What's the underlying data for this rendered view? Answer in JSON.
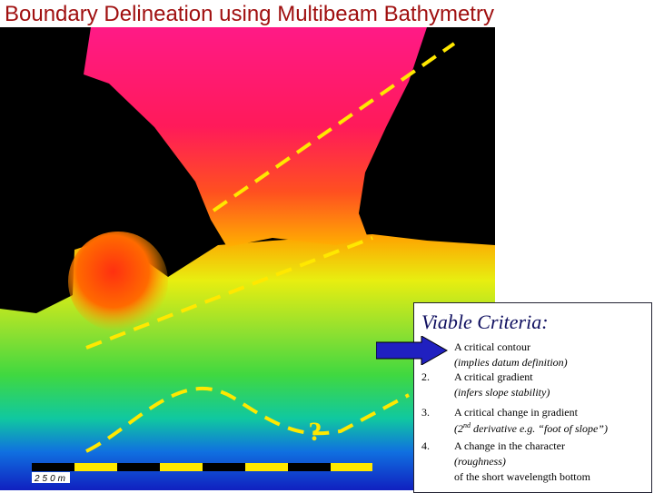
{
  "title": "Boundary Delineation using Multibeam Bathymetry",
  "map": {
    "scale_label": "250m",
    "question_mark": "?"
  },
  "criteria": {
    "heading": "Viable Criteria:",
    "items": [
      {
        "lines": [
          "A critical contour",
          "(implies datum definition)"
        ]
      },
      {
        "number": "2.",
        "lines": [
          "A critical gradient",
          "(infers slope stability)"
        ]
      },
      {
        "number": "3.",
        "lines": [
          "A critical change in gradient"
        ],
        "note": {
          "before": "(2",
          "sup": "nd",
          "after": " derivative e.g. “foot of slope”)"
        }
      },
      {
        "number": "4.",
        "lines": [
          "A change in the character",
          "(roughness)",
          "of the short wavelength bottom"
        ]
      }
    ]
  }
}
